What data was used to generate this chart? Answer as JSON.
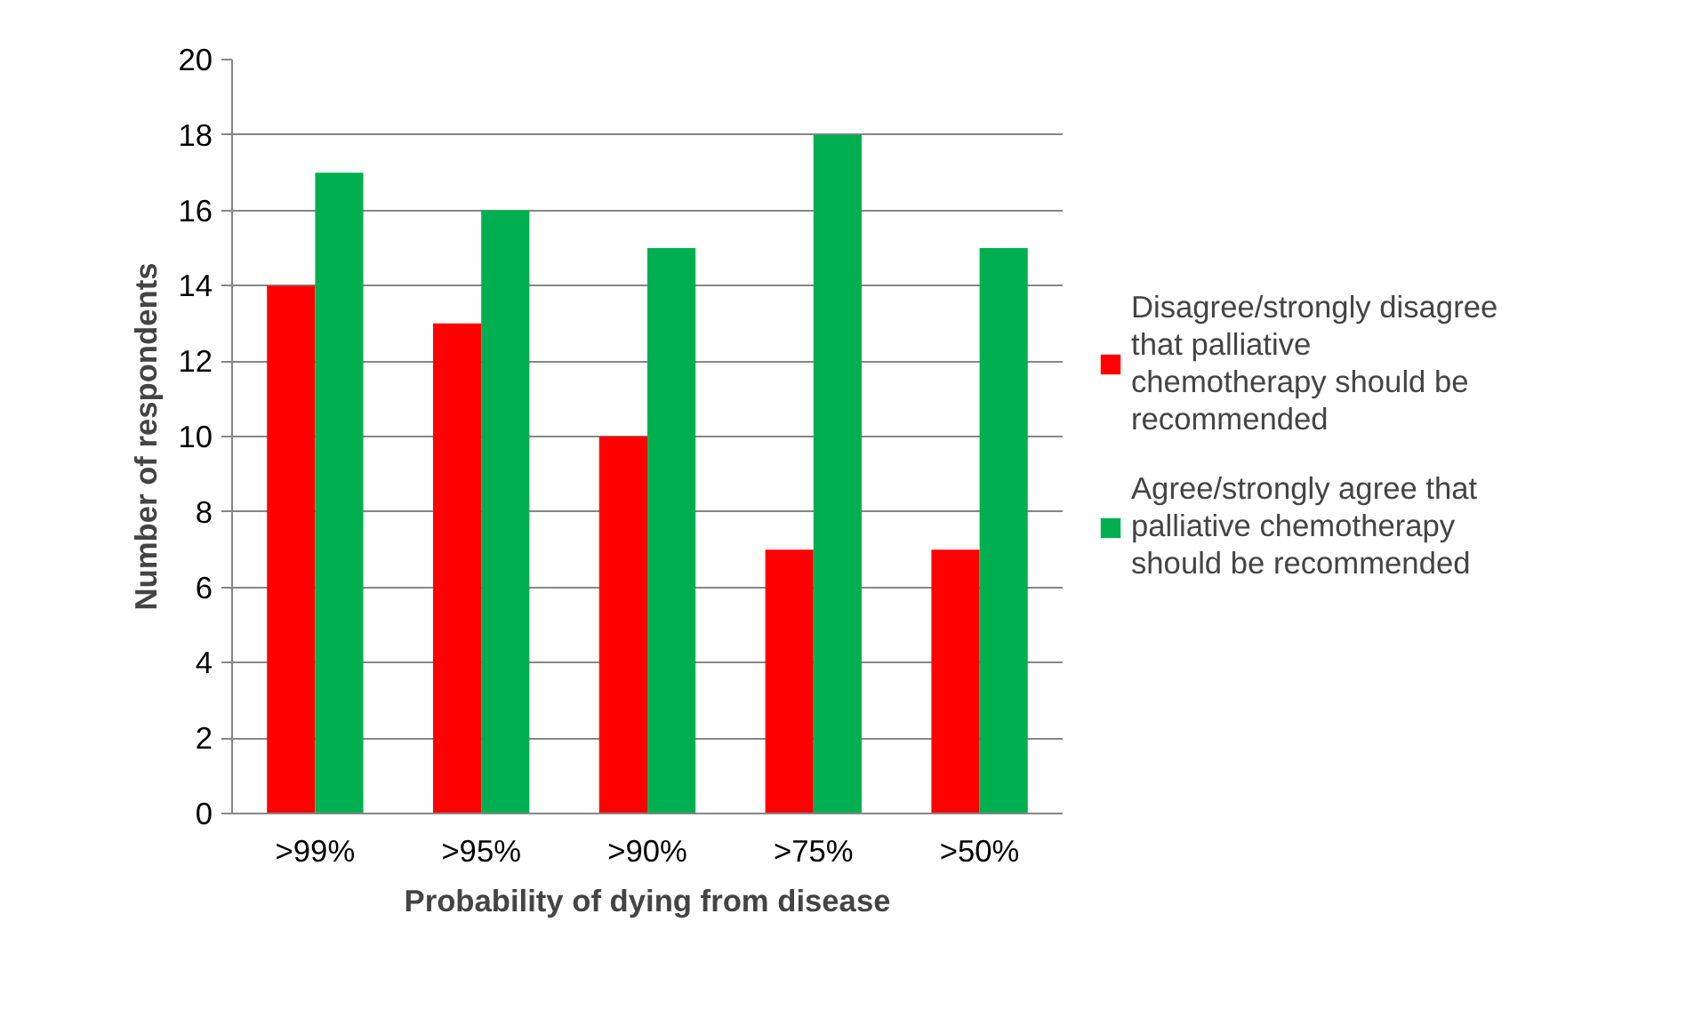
{
  "chart_data": {
    "type": "bar",
    "xlabel": "Probability of dying from disease",
    "ylabel": "Number of respondents",
    "categories": [
      ">99%",
      ">95%",
      ">90%",
      ">75%",
      ">50%"
    ],
    "series": [
      {
        "name": "Disagree/strongly disagree that palliative chemotherapy should be recommended",
        "color": "#ff0000",
        "values": [
          14,
          13,
          10,
          7,
          7
        ]
      },
      {
        "name": "Agree/strongly agree that palliative chemotherapy should be recommended",
        "color": "#00b050",
        "values": [
          17,
          16,
          15,
          18,
          15
        ]
      }
    ],
    "ylim": [
      0,
      20
    ],
    "yticks": [
      0,
      2,
      4,
      6,
      8,
      10,
      12,
      14,
      16,
      18,
      20
    ],
    "grid": "y",
    "legend": "right"
  }
}
